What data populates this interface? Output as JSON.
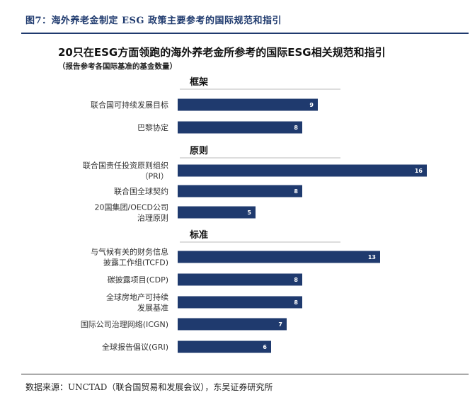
{
  "figure_title": "图7：海外养老金制定 ESG 政策主要参考的国际规范和指引",
  "source": "数据来源：UNCTAD（联合国贸易和发展会议），东吴证券研究所",
  "colors": {
    "bar": "#1f3a6e",
    "accent": "#1f3a6e"
  },
  "chart_data": {
    "type": "bar",
    "orientation": "horizontal",
    "title": "20只在ESG方面领跑的海外养老金所参考的国际ESG相关规范和指引",
    "subtitle": "（报告参考各国际基准的基金数量）",
    "xlabel": "",
    "ylabel": "",
    "xlim": [
      0,
      16
    ],
    "grid": false,
    "groups": [
      {
        "name": "框架",
        "categories": [
          {
            "label": [
              "联合国可持续发展目标"
            ],
            "value": 9
          },
          {
            "label": [
              "巴黎协定"
            ],
            "value": 8
          }
        ]
      },
      {
        "name": "原则",
        "categories": [
          {
            "label": [
              "联合国责任投资原则组织",
              "（PRI）"
            ],
            "value": 16
          },
          {
            "label": [
              "联合国全球契约"
            ],
            "value": 8
          },
          {
            "label": [
              "20国集团/OECD公司",
              "治理原则"
            ],
            "value": 5
          }
        ]
      },
      {
        "name": "标准",
        "categories": [
          {
            "label": [
              "与气候有关的财务信息",
              "披露工作组(TCFD)"
            ],
            "value": 13
          },
          {
            "label": [
              "碳披露项目(CDP)"
            ],
            "value": 8
          },
          {
            "label": [
              "全球房地产可持续",
              "发展基准"
            ],
            "value": 8
          },
          {
            "label": [
              "国际公司治理网络(ICGN)"
            ],
            "value": 7
          },
          {
            "label": [
              "全球报告倡议(GRI)"
            ],
            "value": 6
          }
        ]
      }
    ]
  }
}
